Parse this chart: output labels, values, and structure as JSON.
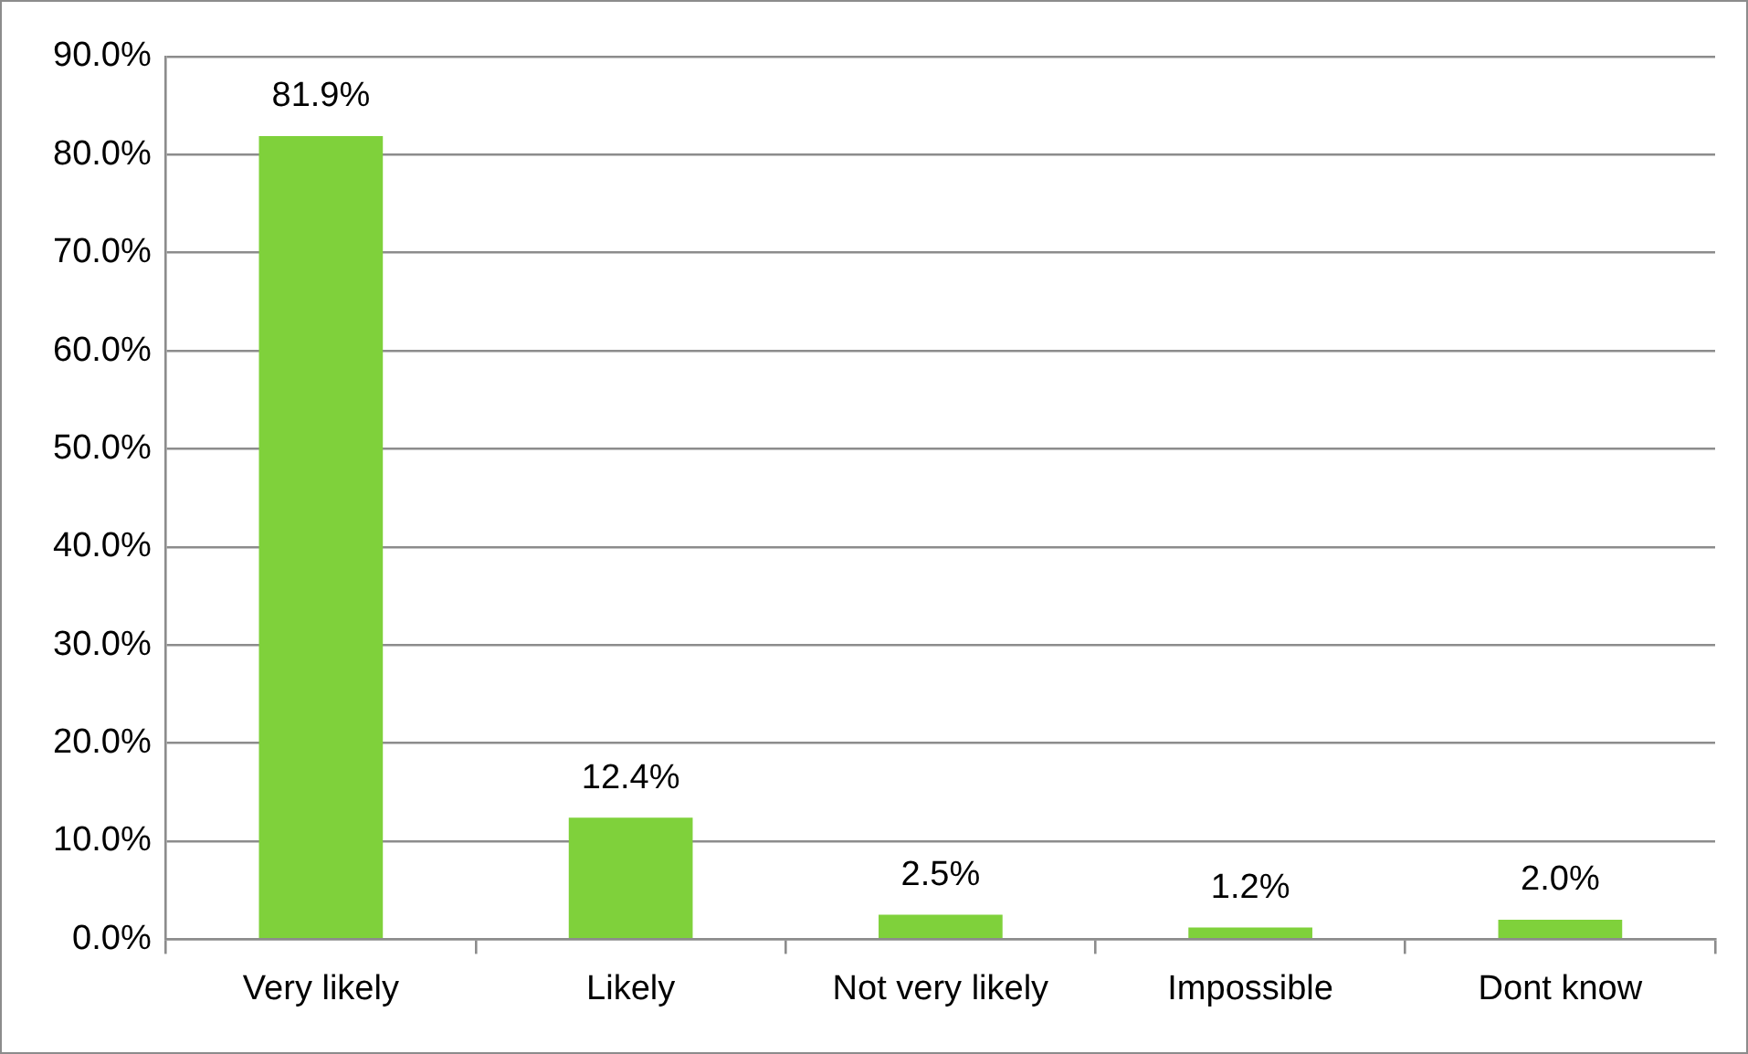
{
  "chart_data": {
    "type": "bar",
    "categories": [
      "Very likely",
      "Likely",
      "Not very likely",
      "Impossible",
      "Dont know"
    ],
    "values": [
      81.9,
      12.4,
      2.5,
      1.2,
      2.0
    ],
    "color": "#7fd13b",
    "value_labels": [
      "81.9%",
      "12.4%",
      "2.5%",
      "1.2%",
      "2.0%"
    ],
    "ylim": [
      0,
      90
    ],
    "yticks": [
      {
        "value": 0,
        "label": "0.0%"
      },
      {
        "value": 10,
        "label": "10.0%"
      },
      {
        "value": 20,
        "label": "20.0%"
      },
      {
        "value": 30,
        "label": "30.0%"
      },
      {
        "value": 40,
        "label": "40.0%"
      },
      {
        "value": 50,
        "label": "50.0%"
      },
      {
        "value": 60,
        "label": "60.0%"
      },
      {
        "value": 70,
        "label": "70.0%"
      },
      {
        "value": 80,
        "label": "80.0%"
      },
      {
        "value": 90,
        "label": "90.0%"
      }
    ],
    "grid": "y",
    "legend": false
  }
}
